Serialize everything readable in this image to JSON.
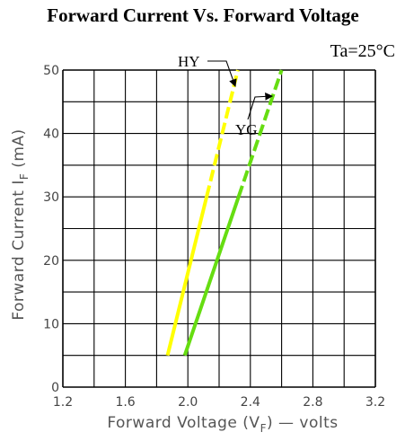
{
  "chart_data": {
    "type": "line",
    "title": "Forward Current Vs. Forward Voltage",
    "condition": "Ta=25°C",
    "xlabel": {
      "main": "Forward Voltage (V",
      "sub": "F",
      "tail": ") — volts"
    },
    "ylabel": {
      "main": "Forward Current  I",
      "sub": "F",
      "tail": " (mA)"
    },
    "xlim": [
      1.2,
      3.2
    ],
    "ylim": [
      0,
      50
    ],
    "x_ticks": [
      "1.2",
      "1.6",
      "2.0",
      "2.4",
      "2.8",
      "3.2"
    ],
    "y_ticks": [
      "0",
      "10",
      "20",
      "30",
      "40",
      "50"
    ],
    "grid": true,
    "series": [
      {
        "name": "HY",
        "color": "#ffff00",
        "x": [
          1.87,
          2.32
        ],
        "y": [
          5,
          50
        ],
        "solid_until_y": 30
      },
      {
        "name": "YG",
        "color": "#66dd11",
        "x": [
          1.98,
          2.6
        ],
        "y": [
          5,
          50
        ],
        "solid_until_y": 30
      }
    ]
  }
}
